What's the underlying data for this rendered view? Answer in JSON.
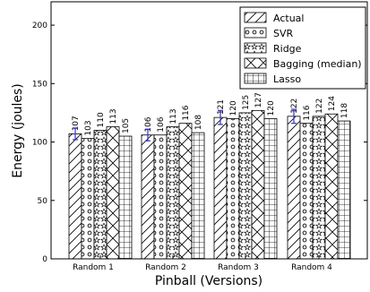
{
  "chart_data": {
    "type": "bar",
    "xlabel": "Pinball (Versions)",
    "ylabel": "Energy (joules)",
    "ylim": [
      0,
      220
    ],
    "yticks": [
      0,
      50,
      100,
      150,
      200
    ],
    "categories": [
      "Random 1",
      "Random 2",
      "Random 3",
      "Random 4"
    ],
    "series": [
      {
        "name": "Actual",
        "values": [
          107,
          106,
          121,
          122
        ],
        "error": [
          5,
          5,
          6,
          6
        ],
        "pattern": "diag"
      },
      {
        "name": "SVR",
        "values": [
          103,
          106,
          120,
          116
        ],
        "pattern": "dots"
      },
      {
        "name": "Ridge",
        "values": [
          110,
          113,
          125,
          122
        ],
        "pattern": "stars"
      },
      {
        "name": "Bagging (median)",
        "values": [
          113,
          116,
          127,
          124
        ],
        "pattern": "xcross"
      },
      {
        "name": "Lasso",
        "values": [
          105,
          108,
          120,
          118
        ],
        "pattern": "grid"
      }
    ],
    "value_labels": [
      [
        "107",
        "103",
        "110",
        "113",
        "105"
      ],
      [
        "106",
        "106",
        "113",
        "116",
        "108"
      ],
      [
        "121",
        "120",
        "125",
        "127",
        "120"
      ],
      [
        "122",
        "116",
        "122",
        "124",
        "118"
      ]
    ],
    "legend_position": "top-right",
    "error_color": "#3333cc",
    "grid": false
  }
}
